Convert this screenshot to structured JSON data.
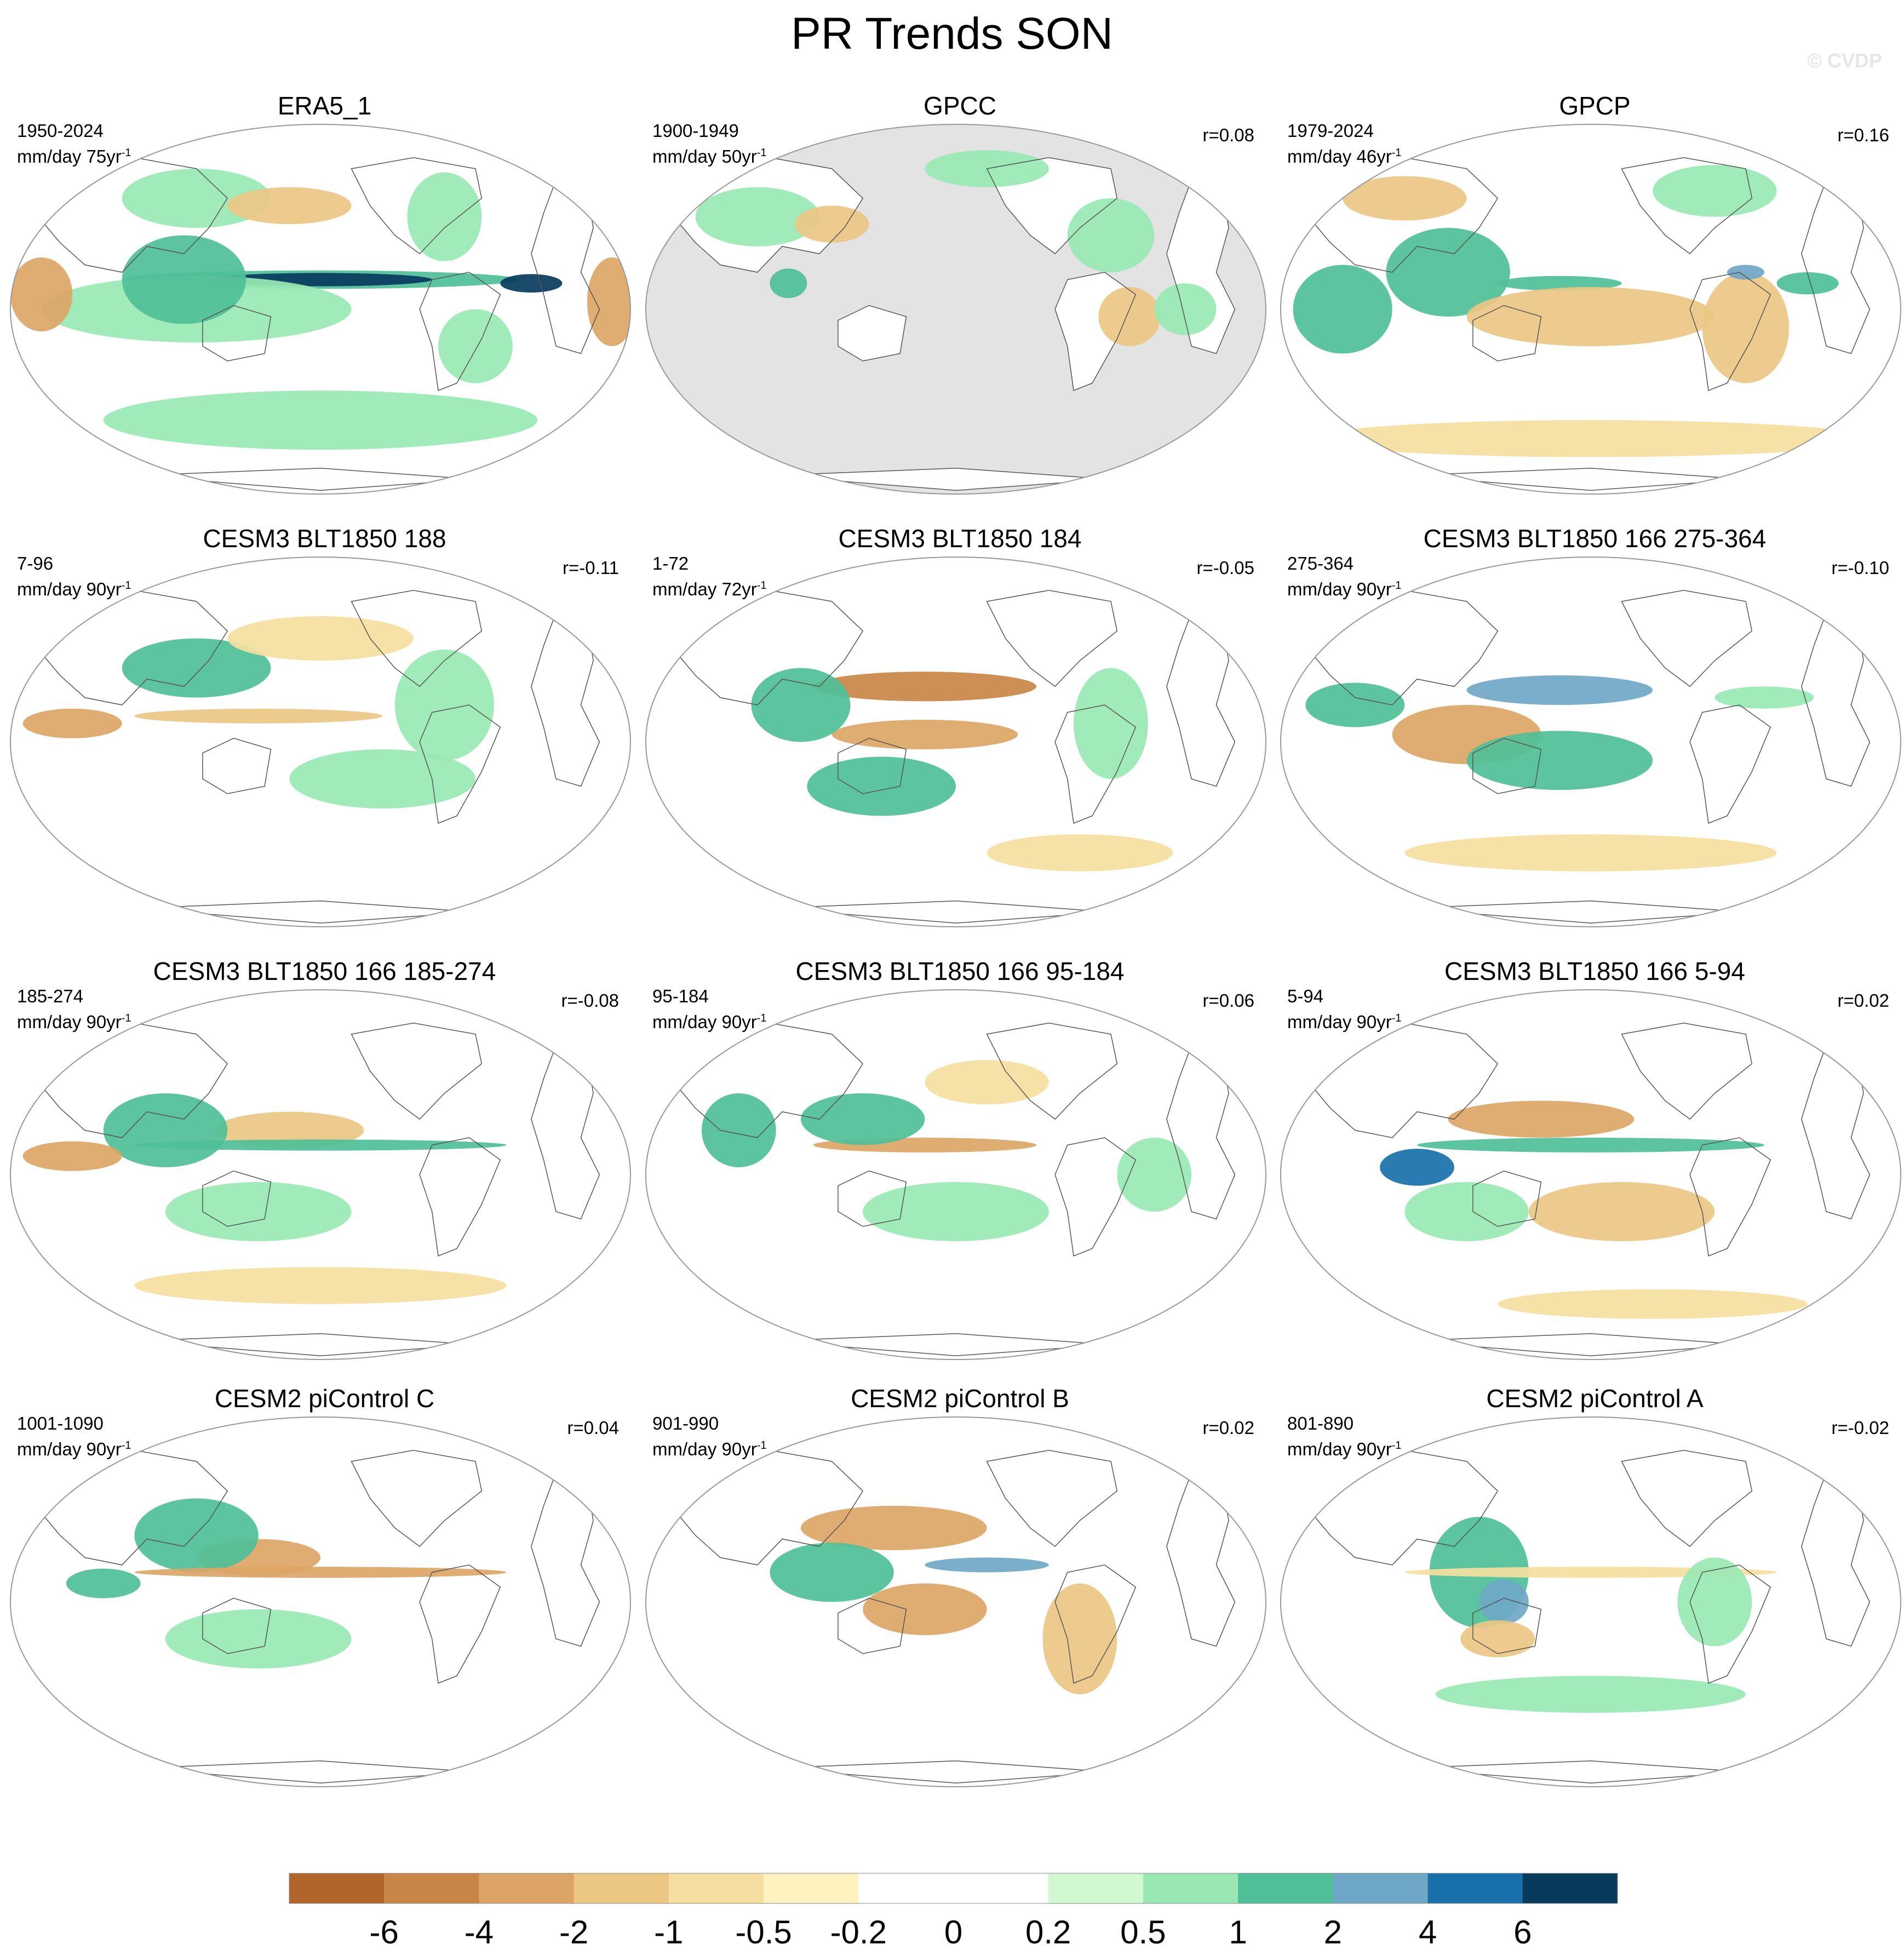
{
  "figure": {
    "title": "PR Trends SON",
    "watermark": "© CVDP"
  },
  "panels": [
    {
      "title": "ERA5_1",
      "period": "1950-2024",
      "units_main": "mm/day 75yr",
      "units_sup": "-1",
      "corr": "",
      "pattern": "era5",
      "masked": false
    },
    {
      "title": "GPCC",
      "period": "1900-1949",
      "units_main": "mm/day 50yr",
      "units_sup": "-1",
      "corr": "r=0.08",
      "pattern": "gpcc",
      "masked": true
    },
    {
      "title": "GPCP",
      "period": "1979-2024",
      "units_main": "mm/day 46yr",
      "units_sup": "-1",
      "corr": "r=0.16",
      "pattern": "gpcp",
      "masked": false
    },
    {
      "title": "CESM3 BLT1850 188",
      "period": "7-96",
      "units_main": "mm/day 90yr",
      "units_sup": "-1",
      "corr": "r=-0.11",
      "pattern": "m1",
      "masked": false
    },
    {
      "title": "CESM3 BLT1850 184",
      "period": "1-72",
      "units_main": "mm/day 72yr",
      "units_sup": "-1",
      "corr": "r=-0.05",
      "pattern": "m2",
      "masked": false
    },
    {
      "title": "CESM3 BLT1850 166 275-364",
      "period": "275-364",
      "units_main": "mm/day 90yr",
      "units_sup": "-1",
      "corr": "r=-0.10",
      "pattern": "m3",
      "masked": false
    },
    {
      "title": "CESM3 BLT1850 166 185-274",
      "period": "185-274",
      "units_main": "mm/day 90yr",
      "units_sup": "-1",
      "corr": "r=-0.08",
      "pattern": "m4",
      "masked": false
    },
    {
      "title": "CESM3 BLT1850 166 95-184",
      "period": "95-184",
      "units_main": "mm/day 90yr",
      "units_sup": "-1",
      "corr": "r=0.06",
      "pattern": "m5",
      "masked": false
    },
    {
      "title": "CESM3 BLT1850 166 5-94",
      "period": "5-94",
      "units_main": "mm/day 90yr",
      "units_sup": "-1",
      "corr": "r=0.02",
      "pattern": "m6",
      "masked": false
    },
    {
      "title": "CESM2 piControl C",
      "period": "1001-1090",
      "units_main": "mm/day 90yr",
      "units_sup": "-1",
      "corr": "r=0.04",
      "pattern": "m7",
      "masked": false
    },
    {
      "title": "CESM2 piControl B",
      "period": "901-990",
      "units_main": "mm/day 90yr",
      "units_sup": "-1",
      "corr": "r=0.02",
      "pattern": "m8",
      "masked": false
    },
    {
      "title": "CESM2 piControl A",
      "period": "801-890",
      "units_main": "mm/day 90yr",
      "units_sup": "-1",
      "corr": "r=-0.02",
      "pattern": "m9",
      "masked": false
    }
  ],
  "colorbar": {
    "labels": [
      "-6",
      "-4",
      "-2",
      "-1",
      "-0.5",
      "-0.2",
      "0",
      "0.2",
      "0.5",
      "1",
      "2",
      "4",
      "6"
    ],
    "colors": [
      "#b2652a",
      "#c98545",
      "#dca565",
      "#ecc784",
      "#f5de9f",
      "#fdf2c0",
      "#ffffff",
      "#ffffff",
      "#d1f8d1",
      "#99e8b4",
      "#4fbf98",
      "#6fa7c6",
      "#1770aa",
      "#083a5c"
    ]
  },
  "colors": {
    "ocean_mask": "#e3e3e3",
    "coast": "#555555",
    "frame": "#999999"
  }
}
